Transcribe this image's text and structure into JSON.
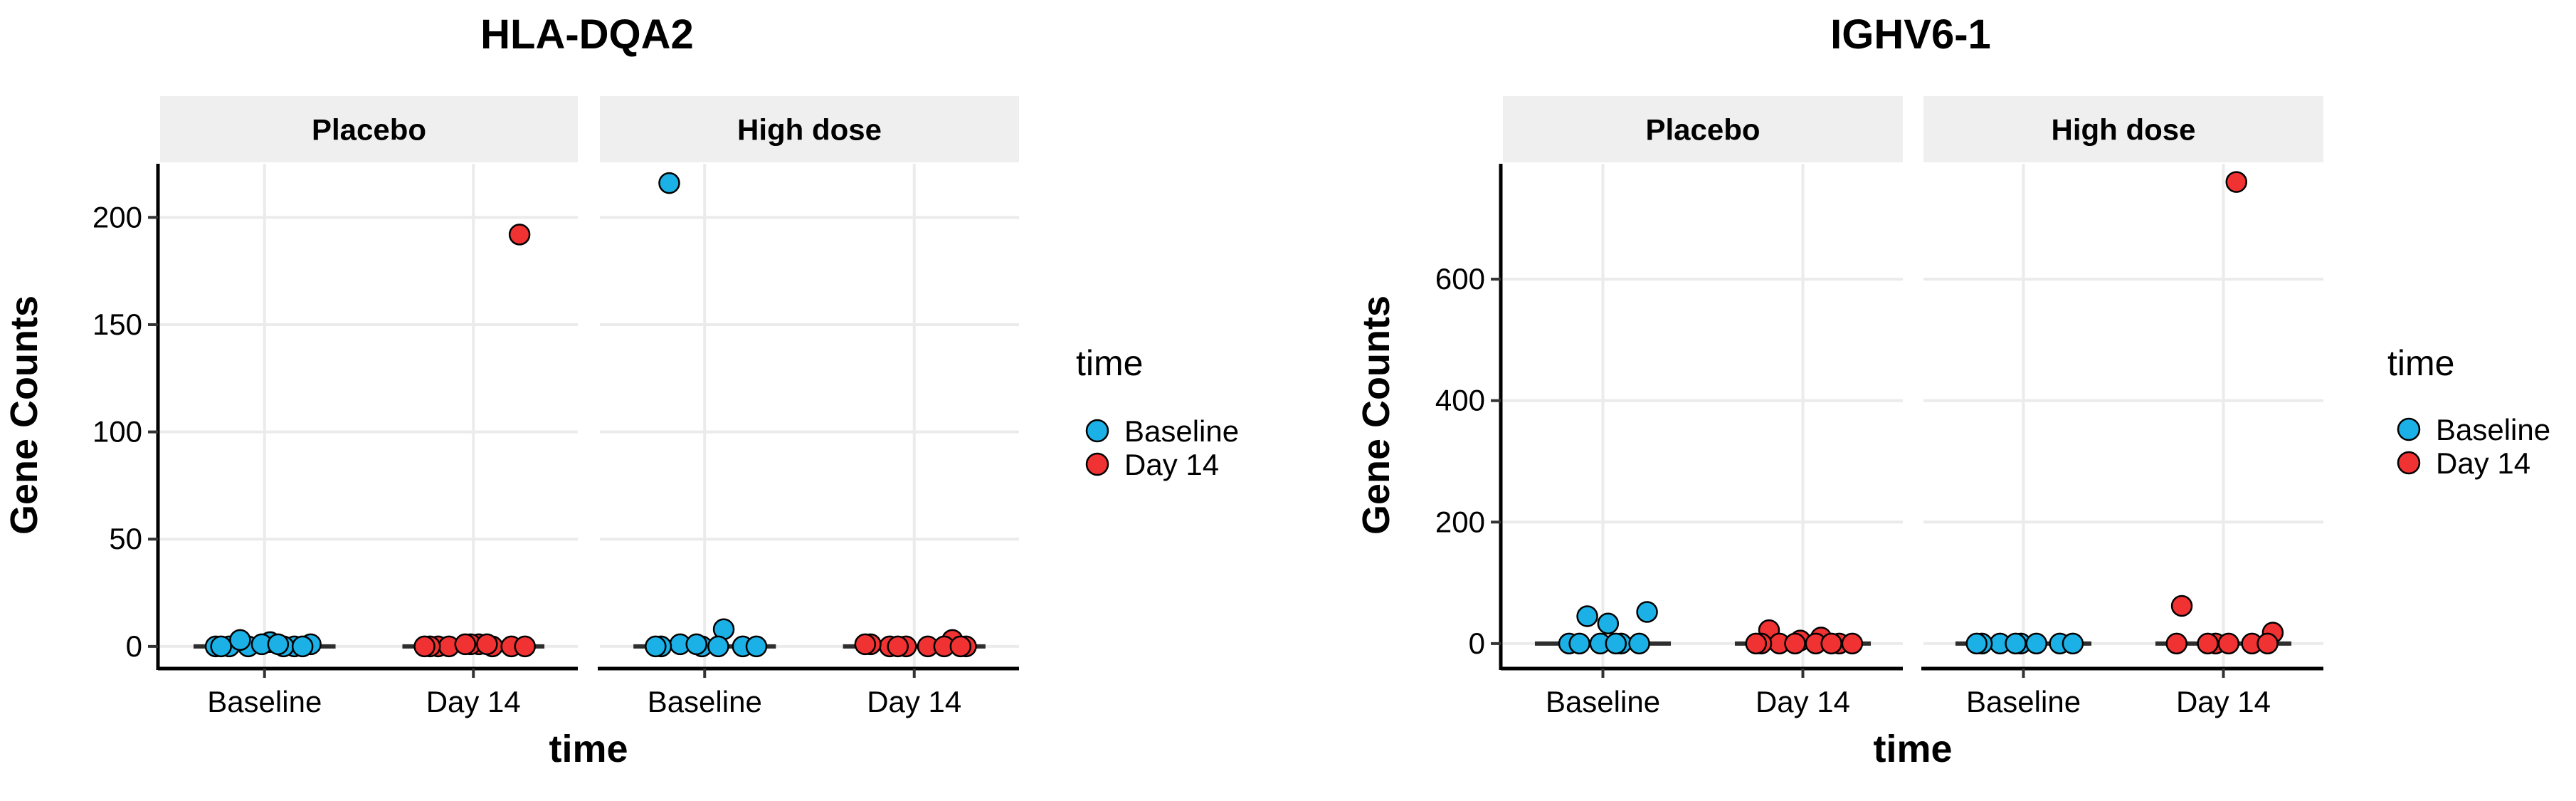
{
  "chart_data": [
    {
      "type": "scatter",
      "title": "HLA-DQA2",
      "ylabel": "Gene Counts",
      "xlabel": "time",
      "categories": [
        "Baseline",
        "Day 14"
      ],
      "ylim": [
        -10,
        225
      ],
      "yticks": [
        0,
        50,
        100,
        150,
        200
      ],
      "tick_labels": [
        "0",
        "50",
        "100",
        "150",
        "200"
      ],
      "facets": [
        {
          "label": "Placebo",
          "series": [
            {
              "name": "Baseline",
              "values": [
                0,
                0,
                0,
                1,
                2,
                0,
                0,
                1,
                0,
                3,
                1,
                0
              ]
            },
            {
              "name": "Day 14",
              "values": [
                192,
                1,
                0,
                0,
                1,
                0,
                0,
                1,
                0,
                0,
                1,
                0
              ]
            }
          ]
        },
        {
          "label": "High dose",
          "series": [
            {
              "name": "Baseline",
              "values": [
                216,
                8,
                0,
                0,
                1,
                0,
                0,
                0,
                1,
                0
              ]
            },
            {
              "name": "Day 14",
              "values": [
                3,
                0,
                0,
                1,
                0,
                0,
                1,
                0,
                0,
                0
              ]
            }
          ]
        }
      ],
      "legend": {
        "title": "time",
        "entries": [
          "Baseline",
          "Day 14"
        ],
        "placement": "right"
      }
    },
    {
      "type": "scatter",
      "title": "IGHV6-1",
      "ylabel": "Gene Counts",
      "xlabel": "time",
      "categories": [
        "Baseline",
        "Day 14"
      ],
      "ylim": [
        -40,
        790
      ],
      "yticks": [
        0,
        200,
        400,
        600
      ],
      "tick_labels": [
        "0",
        "200",
        "400",
        "600"
      ],
      "facets": [
        {
          "label": "Placebo",
          "series": [
            {
              "name": "Baseline",
              "values": [
                45,
                52,
                33,
                0,
                0,
                0,
                0,
                0,
                0
              ]
            },
            {
              "name": "Day 14",
              "values": [
                22,
                10,
                5,
                0,
                0,
                0,
                0,
                0,
                0,
                0,
                0
              ]
            }
          ]
        },
        {
          "label": "High dose",
          "series": [
            {
              "name": "Baseline",
              "values": [
                0,
                0,
                0,
                0,
                0,
                0,
                0,
                0
              ]
            },
            {
              "name": "Day 14",
              "values": [
                760,
                62,
                18,
                0,
                0,
                0,
                0,
                0,
                0
              ]
            }
          ]
        }
      ],
      "legend": {
        "title": "time",
        "entries": [
          "Baseline",
          "Day 14"
        ],
        "placement": "right"
      }
    }
  ],
  "colors": {
    "Baseline": "#1bb1e6",
    "Day 14": "#f03232",
    "strip": "#efefef",
    "grid": "#ebebeb",
    "median": "#2e2e2e"
  }
}
